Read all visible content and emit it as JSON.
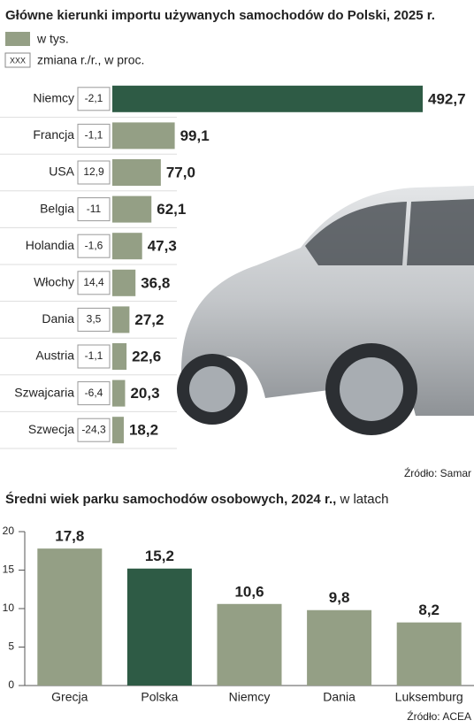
{
  "chart_data": [
    {
      "type": "hbar",
      "title": "Główne kierunki importu używanych samochodów do Polski, 2025 r.",
      "categories": [
        "Niemcy",
        "Francja",
        "USA",
        "Belgia",
        "Holandia",
        "Włochy",
        "Dania",
        "Austria",
        "Szwajcaria",
        "Szwecja"
      ],
      "series": [
        {
          "name": "w tys.",
          "color": "#949f85",
          "colors": [
            "#2e5b45",
            "#949f85",
            "#949f85",
            "#949f85",
            "#949f85",
            "#949f85",
            "#949f85",
            "#949f85",
            "#949f85",
            "#949f85"
          ],
          "values": [
            492.7,
            99.1,
            77.0,
            62.1,
            47.3,
            36.8,
            27.2,
            22.6,
            20.3,
            18.2
          ],
          "value_labels": [
            "492,7",
            "99,1",
            "77,0",
            "62,1",
            "47,3",
            "36,8",
            "27,2",
            "22,6",
            "20,3",
            "18,2"
          ]
        },
        {
          "name": "zmiana r./r., w proc.",
          "sample_label": "XXX",
          "values": [
            -2.1,
            -1.1,
            12.9,
            -11,
            -1.6,
            14.4,
            3.5,
            -1.1,
            -6.4,
            -24.3
          ],
          "value_labels": [
            "-2,1",
            "-1,1",
            "12,9",
            "-11",
            "-1,6",
            "14,4",
            "3,5",
            "-1,1",
            "-6,4",
            "-24,3"
          ]
        }
      ],
      "source": "Źródło: Samar"
    },
    {
      "type": "bar",
      "title": "Średni wiek parku samochodów osobowych, 2024 r.,",
      "subtitle": "w latach",
      "categories": [
        "Grecja",
        "Polska",
        "Niemcy",
        "Dania",
        "Luksemburg"
      ],
      "values": [
        17.8,
        15.2,
        10.6,
        9.8,
        8.2
      ],
      "value_labels": [
        "17,8",
        "15,2",
        "10,6",
        "9,8",
        "8,2"
      ],
      "colors": [
        "#949f85",
        "#2e5b45",
        "#949f85",
        "#949f85",
        "#949f85"
      ],
      "ylim": [
        0,
        20
      ],
      "yticks": [
        0,
        5,
        10,
        15,
        20
      ],
      "grid": false,
      "source": "Źródło: ACEA"
    }
  ]
}
